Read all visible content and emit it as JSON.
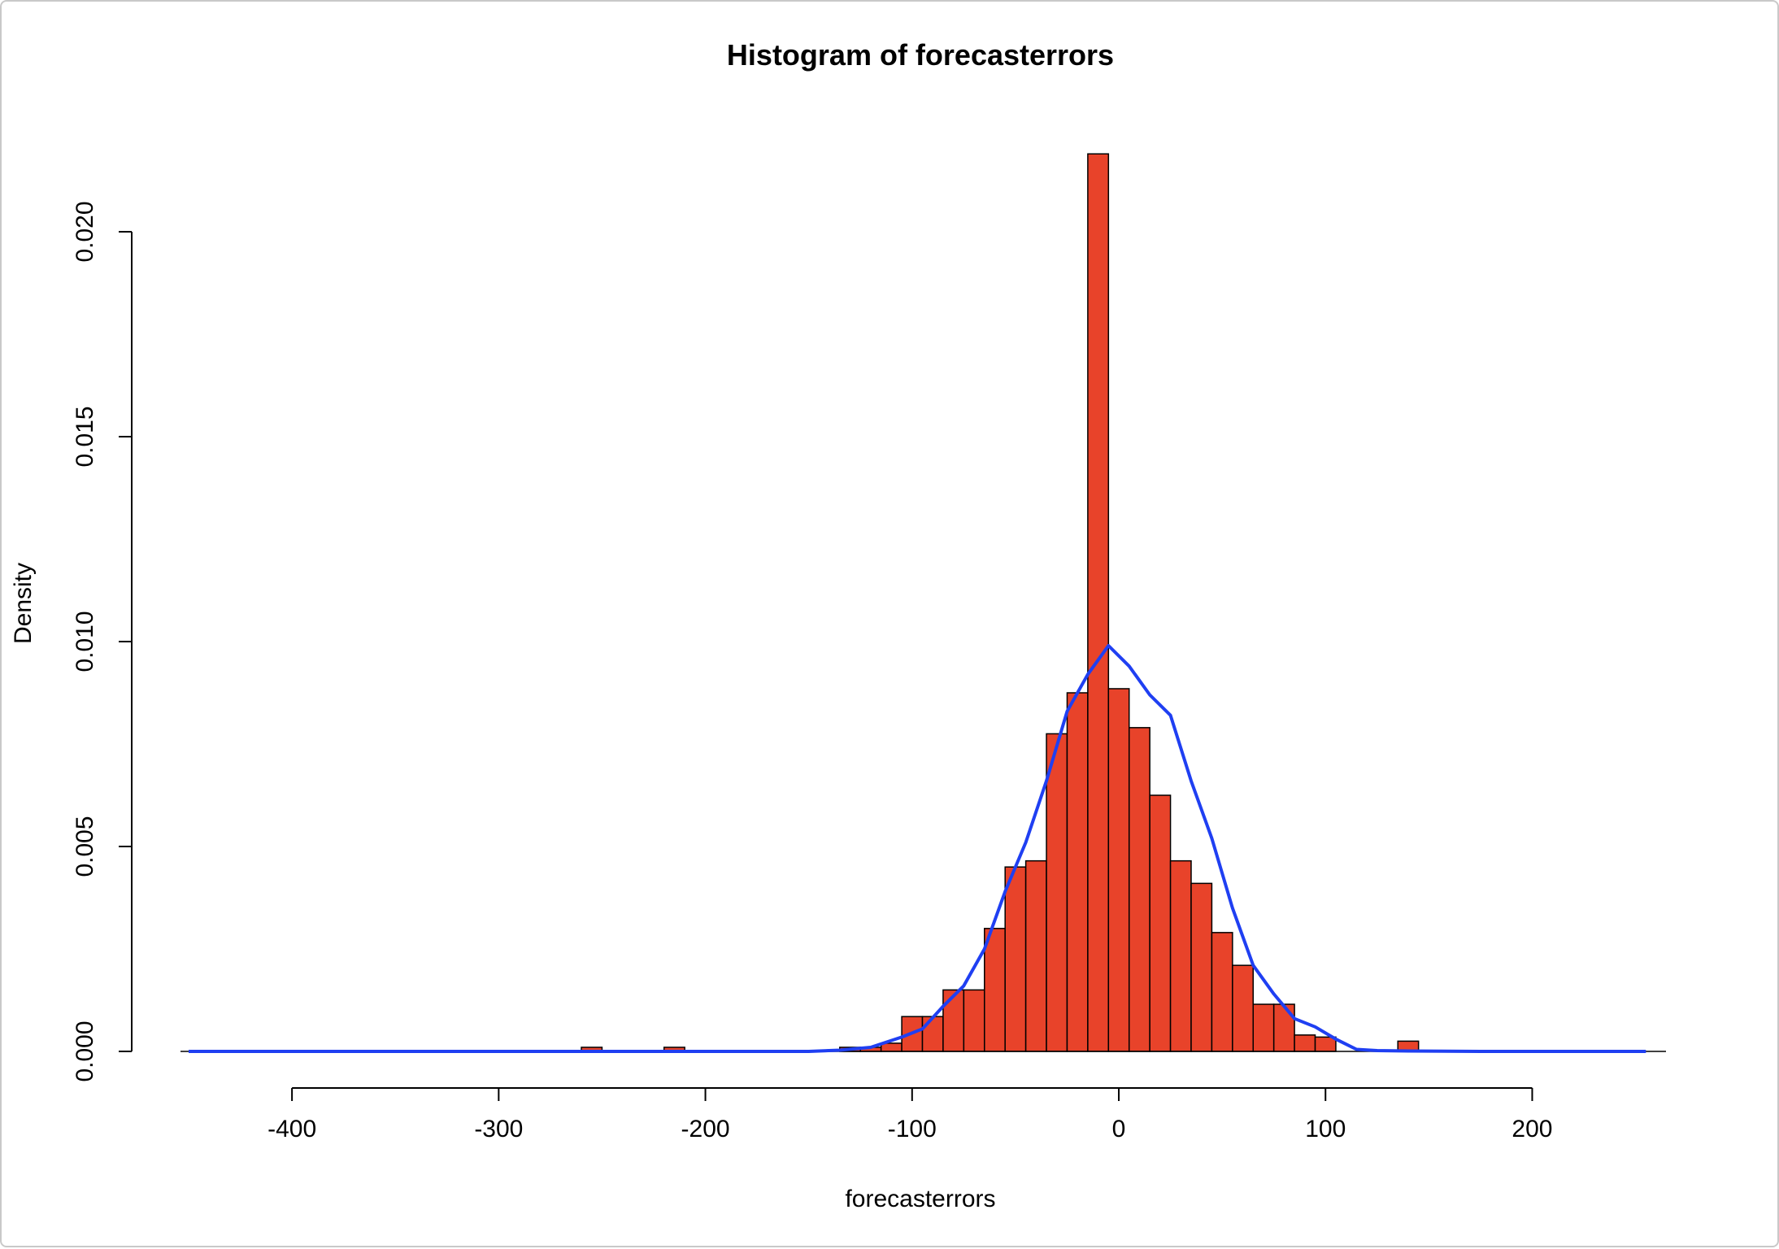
{
  "chart_data": {
    "type": "bar",
    "title": "Histogram of forecasterrors",
    "xlabel": "forecasterrors",
    "ylabel": "Density",
    "xlim": [
      -450,
      260
    ],
    "ylim": [
      0,
      0.022
    ],
    "x_ticks": [
      -400,
      -300,
      -200,
      -100,
      0,
      100,
      200
    ],
    "x_tick_labels": [
      "-400",
      "-300",
      "-200",
      "-100",
      "0",
      "100",
      "200"
    ],
    "y_ticks": [
      0,
      0.005,
      0.01,
      0.015,
      0.02
    ],
    "y_tick_labels": [
      "0.000",
      "0.005",
      "0.010",
      "0.015",
      "0.020"
    ],
    "grid": false,
    "bar_color": "#e8432a",
    "bar_edge_color": "#000000",
    "curve_color": "#1f3ff2",
    "histogram_bins": [
      {
        "x0": -260,
        "x1": -250,
        "density": 0.0001
      },
      {
        "x0": -220,
        "x1": -210,
        "density": 0.0001
      },
      {
        "x0": -135,
        "x1": -125,
        "density": 0.0001
      },
      {
        "x0": -125,
        "x1": -115,
        "density": 0.0001
      },
      {
        "x0": -115,
        "x1": -105,
        "density": 0.0002
      },
      {
        "x0": -105,
        "x1": -95,
        "density": 0.00085
      },
      {
        "x0": -95,
        "x1": -85,
        "density": 0.00085
      },
      {
        "x0": -85,
        "x1": -75,
        "density": 0.0015
      },
      {
        "x0": -75,
        "x1": -65,
        "density": 0.0015
      },
      {
        "x0": -65,
        "x1": -55,
        "density": 0.003
      },
      {
        "x0": -55,
        "x1": -45,
        "density": 0.0045
      },
      {
        "x0": -45,
        "x1": -35,
        "density": 0.00465
      },
      {
        "x0": -35,
        "x1": -25,
        "density": 0.00775
      },
      {
        "x0": -25,
        "x1": -15,
        "density": 0.00875
      },
      {
        "x0": -15,
        "x1": -5,
        "density": 0.0219
      },
      {
        "x0": -5,
        "x1": 5,
        "density": 0.00885
      },
      {
        "x0": 5,
        "x1": 15,
        "density": 0.0079
      },
      {
        "x0": 15,
        "x1": 25,
        "density": 0.00625
      },
      {
        "x0": 25,
        "x1": 35,
        "density": 0.00465
      },
      {
        "x0": 35,
        "x1": 45,
        "density": 0.0041
      },
      {
        "x0": 45,
        "x1": 55,
        "density": 0.0029
      },
      {
        "x0": 55,
        "x1": 65,
        "density": 0.0021
      },
      {
        "x0": 65,
        "x1": 75,
        "density": 0.00115
      },
      {
        "x0": 75,
        "x1": 85,
        "density": 0.00115
      },
      {
        "x0": 85,
        "x1": 95,
        "density": 0.0004
      },
      {
        "x0": 95,
        "x1": 105,
        "density": 0.00035
      },
      {
        "x0": 135,
        "x1": 145,
        "density": 0.00025
      }
    ],
    "density_curve": {
      "x": [
        -450,
        -300,
        -200,
        -150,
        -135,
        -120,
        -105,
        -95,
        -85,
        -75,
        -65,
        -55,
        -45,
        -35,
        -25,
        -15,
        -5,
        5,
        15,
        25,
        35,
        45,
        55,
        65,
        75,
        85,
        95,
        105,
        115,
        125,
        140,
        175,
        255
      ],
      "y": [
        0,
        0,
        0,
        0,
        3e-05,
        0.0001,
        0.00035,
        0.00055,
        0.0011,
        0.0016,
        0.0025,
        0.0039,
        0.0051,
        0.0066,
        0.0083,
        0.0092,
        0.0099,
        0.0094,
        0.0087,
        0.0082,
        0.0066,
        0.0052,
        0.0035,
        0.0021,
        0.0014,
        0.0008,
        0.0006,
        0.0003,
        5e-05,
        2e-05,
        1e-05,
        0,
        0
      ]
    }
  }
}
